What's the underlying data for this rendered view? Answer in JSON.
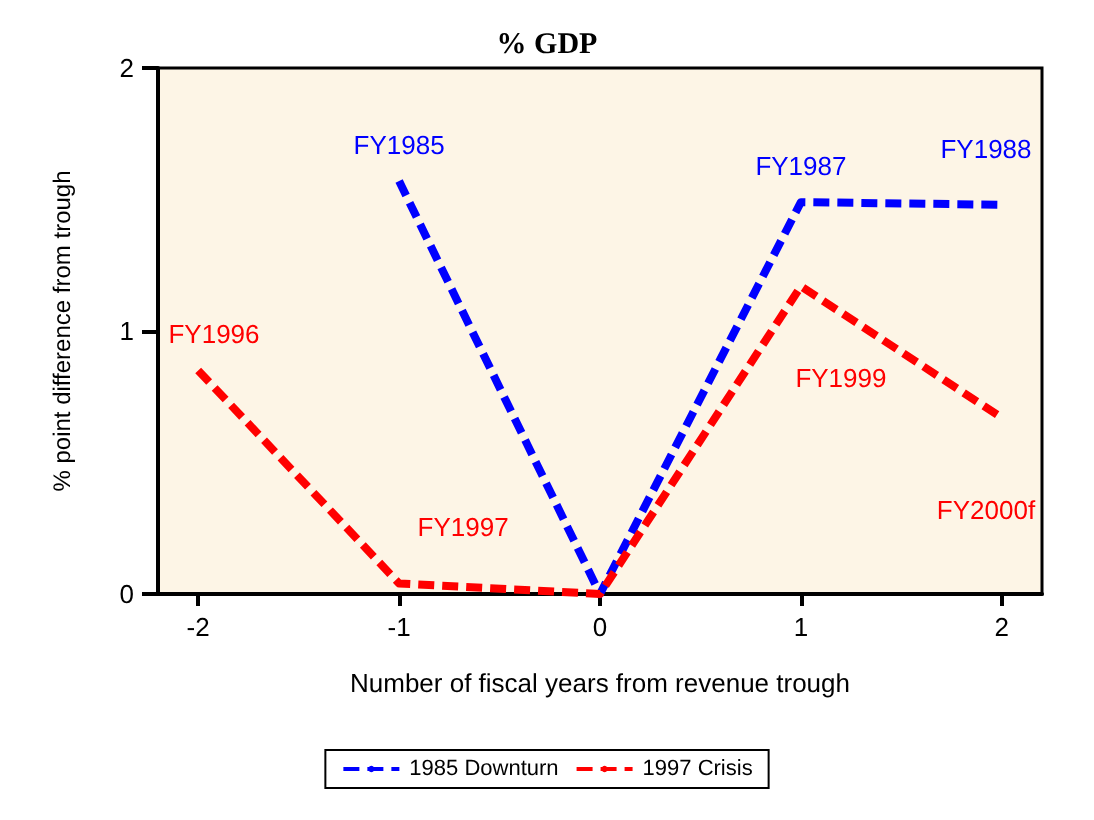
{
  "chart_data": {
    "type": "line",
    "title": "% GDP",
    "xlabel": "Number of fiscal years from revenue trough",
    "ylabel": "% point difference from trough",
    "xlim": [
      -2.2,
      2.2
    ],
    "xticks": [
      -2,
      -1,
      0,
      1,
      2
    ],
    "ylim": [
      0,
      2
    ],
    "yticks": [
      0,
      1,
      2
    ],
    "series": [
      {
        "name": "1985 Downturn",
        "color": "#0000ff",
        "x": [
          -1,
          0,
          1,
          2
        ],
        "values": [
          1.57,
          0,
          1.49,
          1.48
        ]
      },
      {
        "name": "1997 Crisis",
        "color": "#ff0000",
        "x": [
          -2,
          -1,
          0,
          1,
          2
        ],
        "values": [
          0.85,
          0.04,
          0,
          1.17,
          0.67
        ]
      }
    ],
    "annotations": [
      {
        "text": "FY1985",
        "x": -1,
        "y": 1.57
      },
      {
        "text": "FY1987",
        "x": 1,
        "y": 1.49
      },
      {
        "text": "FY1988",
        "x": 2,
        "y": 1.48
      },
      {
        "text": "FY1996",
        "x": -2,
        "y": 0.85
      },
      {
        "text": "FY1997",
        "x": -1,
        "y": 0.04
      },
      {
        "text": "FY1999",
        "x": 1,
        "y": 1.17
      },
      {
        "text": "FY2000f",
        "x": 2,
        "y": 0.67
      }
    ],
    "legend": "bottom",
    "grid": false,
    "marker": "none",
    "line_style": "dashed"
  }
}
